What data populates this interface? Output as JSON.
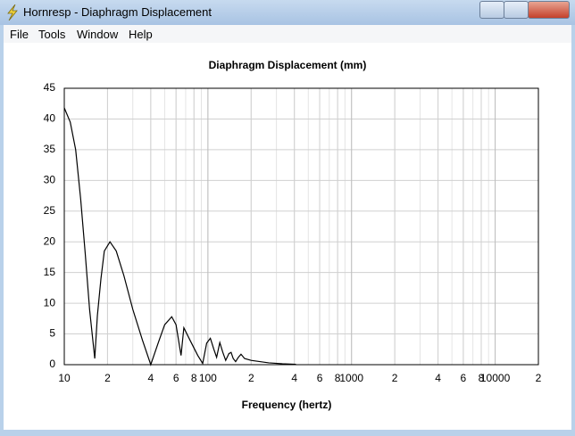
{
  "window": {
    "title": "Hornresp - Diaphragm Displacement",
    "menu": [
      "File",
      "Tools",
      "Window",
      "Help"
    ]
  },
  "chart_data": {
    "type": "line",
    "title": "Diaphragm Displacement (mm)",
    "xlabel": "Frequency (hertz)",
    "x": [
      10,
      11,
      12,
      13,
      14,
      15,
      16.3,
      17,
      18,
      19,
      20.8,
      23,
      26,
      30,
      35,
      40,
      45,
      50,
      56,
      60,
      65,
      68,
      75,
      85,
      92,
      98,
      104,
      110,
      115,
      121,
      127,
      133,
      140,
      145,
      150,
      156,
      163,
      170,
      180,
      200,
      230,
      265,
      330,
      410
    ],
    "values": [
      41.8,
      39.5,
      35,
      27,
      18,
      9,
      1,
      8,
      14,
      18.5,
      20,
      18.5,
      14.5,
      9,
      4,
      0,
      3.5,
      6.5,
      7.8,
      6.5,
      1.5,
      6,
      4,
      1.5,
      0.2,
      3.5,
      4.3,
      2.5,
      1.2,
      3.6,
      2,
      0.7,
      1.8,
      2,
      1,
      0.5,
      1.2,
      1.7,
      1,
      0.7,
      0.5,
      0.3,
      0.15,
      0.05
    ],
    "color": "#000000",
    "log_x": true,
    "grid": true,
    "xlim": [
      10,
      20000
    ],
    "xticks": [
      10,
      {
        "value": 20,
        "label": "2"
      },
      {
        "value": 40,
        "label": "4"
      },
      {
        "value": 60,
        "label": "6"
      },
      {
        "value": 80,
        "label": "8"
      },
      100,
      {
        "value": 200,
        "label": "2"
      },
      {
        "value": 400,
        "label": "4"
      },
      {
        "value": 600,
        "label": "6"
      },
      {
        "value": 800,
        "label": "8"
      },
      1000,
      {
        "value": 2000,
        "label": "2"
      },
      {
        "value": 4000,
        "label": "4"
      },
      {
        "value": 6000,
        "label": "6"
      },
      {
        "value": 8000,
        "label": "8"
      },
      10000,
      {
        "value": 20000,
        "label": "2"
      }
    ],
    "ylim": [
      0,
      45
    ],
    "yticks": [
      0,
      5,
      10,
      15,
      20,
      25,
      30,
      35,
      40,
      45
    ]
  }
}
